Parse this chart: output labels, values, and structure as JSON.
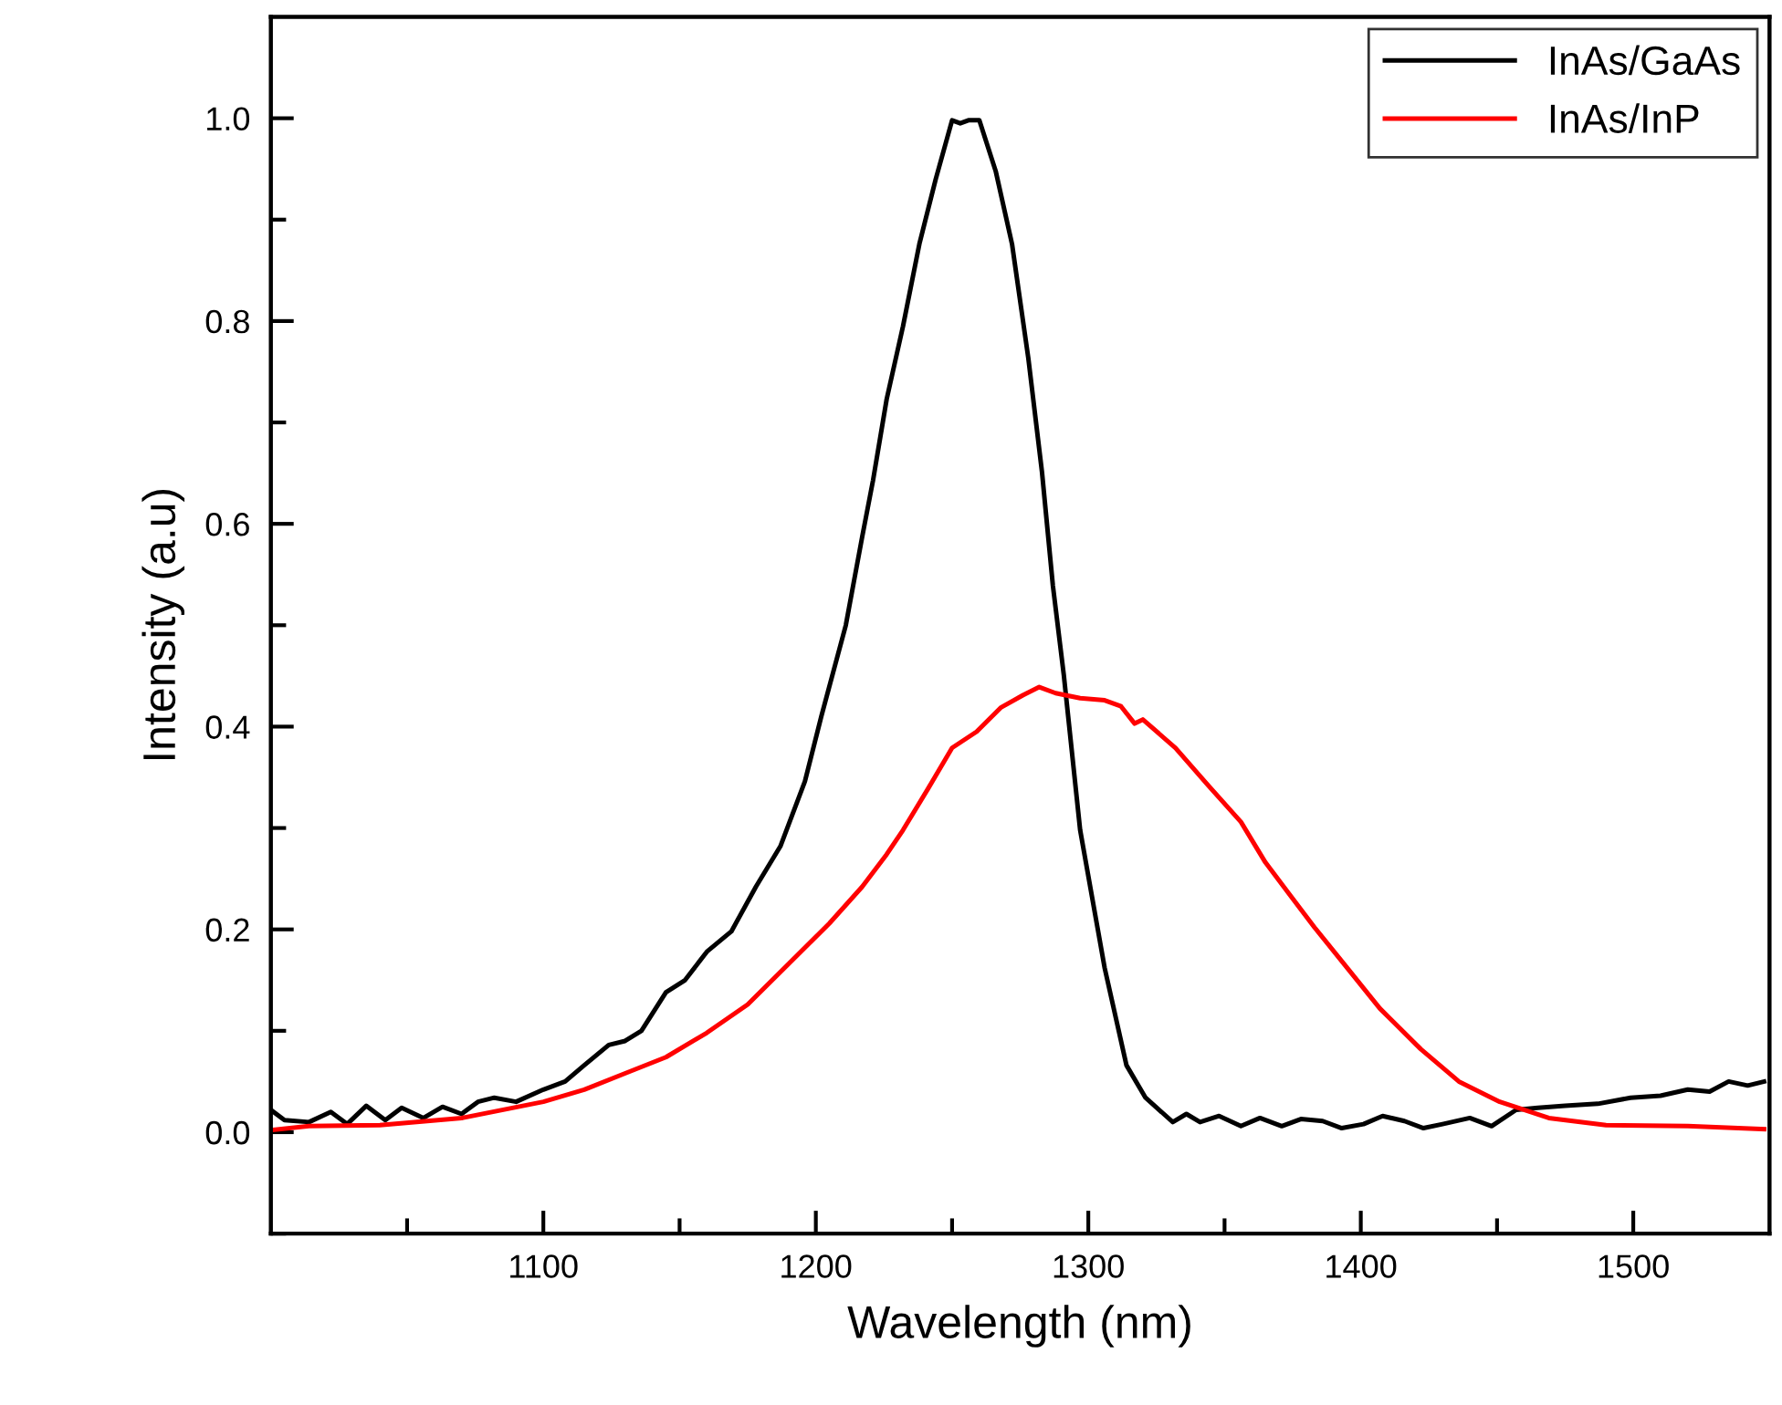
{
  "chart_data": {
    "type": "line",
    "xlabel": "Wavelength (nm)",
    "ylabel": "Intensity (a.u)",
    "xlim": [
      1000,
      1550
    ],
    "ylim": [
      -0.1,
      1.1
    ],
    "xticks": [
      {
        "value": 1050,
        "label": null
      },
      1100,
      {
        "value": 1150,
        "label": null
      },
      1200,
      {
        "value": 1250,
        "label": null
      },
      1300,
      {
        "value": 1350,
        "label": null
      },
      1400,
      {
        "value": 1450,
        "label": null
      },
      1500
    ],
    "yticks": [
      {
        "value": -0.1,
        "label": null
      },
      {
        "value": 0.0,
        "label": "0.0"
      },
      {
        "value": 0.1,
        "label": null
      },
      0.2,
      {
        "value": 0.3,
        "label": null
      },
      0.4,
      {
        "value": 0.5,
        "label": null
      },
      0.6,
      {
        "value": 0.7,
        "label": null
      },
      0.8,
      {
        "value": 0.9,
        "label": null
      },
      {
        "value": 1.0,
        "label": "1.0"
      }
    ],
    "grid": false,
    "legend": "top right",
    "marker": "none",
    "line_style": "solid",
    "series": [
      {
        "name": "InAs/GaAs",
        "color": "#000000",
        "x": [
          1000,
          1005,
          1014,
          1022,
          1028,
          1035,
          1042,
          1048,
          1056,
          1063,
          1070,
          1076,
          1082,
          1090,
          1100,
          1108,
          1115,
          1124,
          1130,
          1136,
          1145,
          1152,
          1160,
          1169,
          1178,
          1187,
          1196,
          1202,
          1211,
          1217,
          1221,
          1226,
          1232,
          1238,
          1244,
          1250,
          1253,
          1256,
          1260,
          1266,
          1272,
          1278,
          1283,
          1287,
          1291,
          1297,
          1306,
          1314,
          1321,
          1331,
          1336,
          1341,
          1348,
          1356,
          1363,
          1371,
          1378,
          1386,
          1393,
          1401,
          1408,
          1416,
          1423,
          1430,
          1440,
          1448,
          1457,
          1465,
          1475,
          1487,
          1499,
          1510,
          1520,
          1528,
          1535,
          1542,
          1548
        ],
        "values": [
          0.022,
          0.012,
          0.01,
          0.02,
          0.008,
          0.026,
          0.012,
          0.024,
          0.014,
          0.025,
          0.018,
          0.03,
          0.034,
          0.03,
          0.042,
          0.05,
          0.066,
          0.086,
          0.09,
          0.1,
          0.138,
          0.15,
          0.178,
          0.198,
          0.242,
          0.282,
          0.346,
          0.41,
          0.5,
          0.587,
          0.643,
          0.723,
          0.795,
          0.876,
          0.94,
          0.998,
          0.995,
          0.998,
          0.998,
          0.948,
          0.876,
          0.763,
          0.651,
          0.539,
          0.451,
          0.298,
          0.162,
          0.066,
          0.034,
          0.01,
          0.018,
          0.01,
          0.016,
          0.006,
          0.014,
          0.006,
          0.013,
          0.011,
          0.004,
          0.008,
          0.016,
          0.011,
          0.004,
          0.008,
          0.014,
          0.006,
          0.022,
          0.024,
          0.026,
          0.028,
          0.034,
          0.036,
          0.042,
          0.04,
          0.05,
          0.046,
          0.05
        ]
      },
      {
        "name": "InAs/InP",
        "color": "#ff0000",
        "x": [
          1000,
          1014,
          1040,
          1070,
          1100,
          1115,
          1130,
          1145,
          1160,
          1175,
          1190,
          1205,
          1217,
          1226,
          1232,
          1241,
          1250,
          1259,
          1268,
          1276,
          1282,
          1288,
          1297,
          1306,
          1312,
          1317,
          1320,
          1332,
          1344,
          1356,
          1365,
          1374,
          1383,
          1395,
          1407,
          1422,
          1436,
          1451,
          1469,
          1490,
          1520,
          1548
        ],
        "values": [
          0.002,
          0.006,
          0.007,
          0.014,
          0.03,
          0.042,
          0.058,
          0.074,
          0.098,
          0.126,
          0.166,
          0.206,
          0.242,
          0.274,
          0.298,
          0.338,
          0.379,
          0.395,
          0.419,
          0.431,
          0.439,
          0.433,
          0.428,
          0.426,
          0.42,
          0.403,
          0.407,
          0.379,
          0.342,
          0.306,
          0.266,
          0.234,
          0.202,
          0.162,
          0.122,
          0.082,
          0.05,
          0.03,
          0.014,
          0.007,
          0.006,
          0.003
        ]
      }
    ]
  }
}
